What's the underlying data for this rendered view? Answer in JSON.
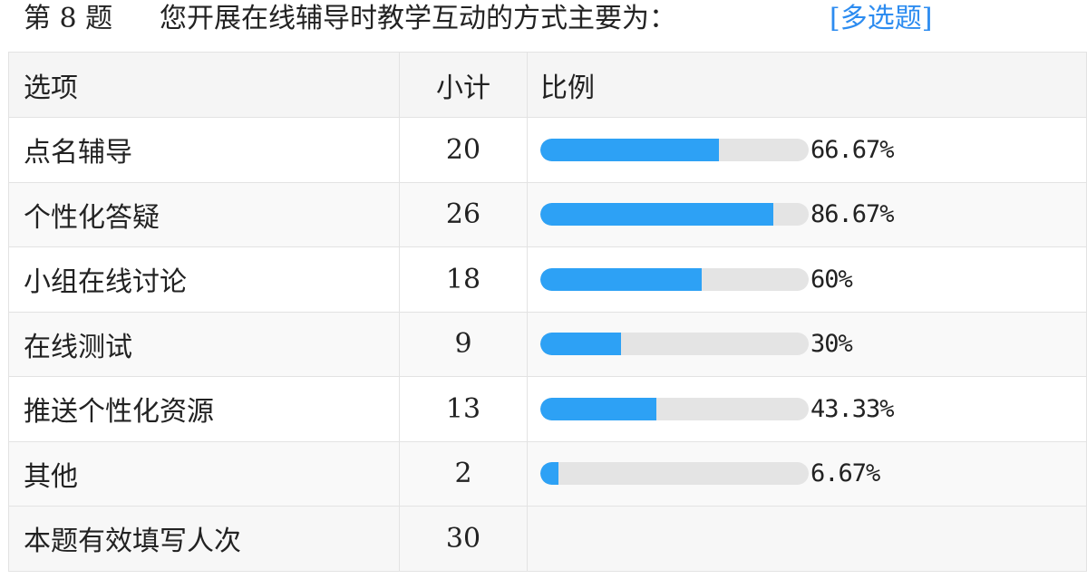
{
  "question": {
    "number": "第 8 题",
    "text": "您开展在线辅导时教学互动的方式主要为：",
    "type": "[多选题]",
    "accent_color": "#2d8cf0"
  },
  "table": {
    "headers": {
      "option": "选项",
      "count": "小计",
      "ratio": "比例"
    },
    "rows": [
      {
        "option": "点名辅导",
        "count": "20",
        "percent": "66.67%",
        "fraction": 0.6667
      },
      {
        "option": "个性化答疑",
        "count": "26",
        "percent": "86.67%",
        "fraction": 0.8667
      },
      {
        "option": "小组在线讨论",
        "count": "18",
        "percent": "60%",
        "fraction": 0.6
      },
      {
        "option": "在线测试",
        "count": "9",
        "percent": "30%",
        "fraction": 0.3
      },
      {
        "option": "推送个性化资源",
        "count": "13",
        "percent": "43.33%",
        "fraction": 0.4333
      },
      {
        "option": "其他",
        "count": "2",
        "percent": "6.67%",
        "fraction": 0.0667
      }
    ],
    "total": {
      "label": "本题有效填写人次",
      "count": "30"
    },
    "bar_color": "#2da1f5",
    "track_color": "#e4e4e4"
  }
}
